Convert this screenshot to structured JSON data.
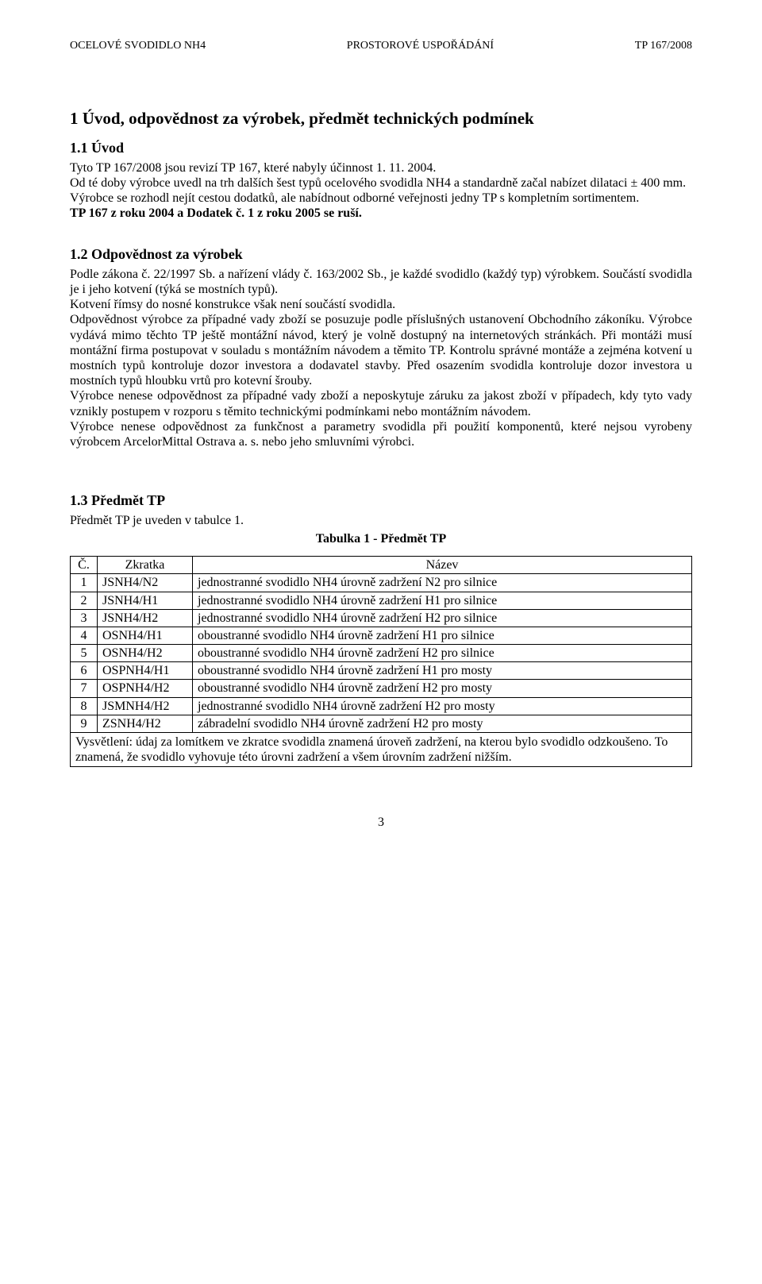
{
  "header": {
    "left": "OCELOVÉ SVODIDLO NH4",
    "center": "PROSTOROVÉ USPOŘÁDÁNÍ",
    "right": "TP 167/2008"
  },
  "section1": {
    "title": "1  Úvod, odpovědnost za výrobek, předmět technických podmínek",
    "s11": {
      "title": "1.1  Úvod",
      "p1": "Tyto TP 167/2008 jsou revizí TP 167, které nabyly účinnost 1. 11. 2004.",
      "p2": "Od té doby výrobce uvedl na trh dalších šest typů ocelového svodidla NH4 a standardně začal nabízet dilataci ± 400 mm.",
      "p3": "Výrobce se rozhodl nejít cestou dodatků, ale nabídnout odborné veřejnosti jedny TP s kompletním sortimentem.",
      "p4": "TP 167 z roku 2004 a Dodatek č. 1 z roku 2005 se ruší."
    },
    "s12": {
      "title": "1.2  Odpovědnost za výrobek",
      "p1": "Podle zákona č. 22/1997 Sb. a nařízení vlády č. 163/2002 Sb., je každé svodidlo (každý typ) výrobkem. Součástí svodidla je i jeho kotvení (týká se mostních typů).",
      "p2": "Kotvení římsy do nosné konstrukce však není součástí svodidla.",
      "p3": "Odpovědnost výrobce za případné vady zboží se posuzuje podle příslušných ustanovení Obchodního zákoníku. Výrobce vydává mimo těchto TP ještě montážní návod, který je volně dostupný na internetových stránkách. Při montáži musí montážní firma postupovat v souladu s montážním návodem a těmito TP. Kontrolu správné montáže a zejména kotvení u mostních typů kontroluje dozor investora a dodavatel stavby. Před osazením svodidla kontroluje dozor investora u mostních typů hloubku vrtů pro kotevní šrouby.",
      "p4": "Výrobce nenese odpovědnost za případné vady zboží a neposkytuje záruku za jakost zboží v případech, kdy tyto vady vznikly postupem v rozporu s těmito technickými podmínkami nebo montážním návodem.",
      "p5": "Výrobce nenese odpovědnost za funkčnost a parametry svodidla při použití komponentů, které nejsou vyrobeny výrobcem ArcelorMittal Ostrava a. s. nebo jeho smluvními výrobci."
    },
    "s13": {
      "title": "1.3  Předmět TP",
      "intro": "Předmět TP je uveden v tabulce 1.",
      "table_caption": "Tabulka 1 - Předmět TP",
      "table": {
        "head": {
          "num": "Č.",
          "abbr": "Zkratka",
          "name": "Název"
        },
        "rows": [
          {
            "num": "1",
            "abbr": "JSNH4/N2",
            "name": "jednostranné svodidlo NH4 úrovně zadržení N2 pro silnice"
          },
          {
            "num": "2",
            "abbr": "JSNH4/H1",
            "name": "jednostranné svodidlo NH4 úrovně zadržení H1 pro silnice"
          },
          {
            "num": "3",
            "abbr": "JSNH4/H2",
            "name": "jednostranné svodidlo NH4 úrovně zadržení H2 pro silnice"
          },
          {
            "num": "4",
            "abbr": "OSNH4/H1",
            "name": "oboustranné svodidlo NH4 úrovně zadržení H1 pro silnice"
          },
          {
            "num": "5",
            "abbr": "OSNH4/H2",
            "name": "oboustranné svodidlo NH4 úrovně zadržení H2 pro silnice"
          },
          {
            "num": "6",
            "abbr": "OSPNH4/H1",
            "name": "oboustranné svodidlo NH4 úrovně zadržení H1 pro mosty"
          },
          {
            "num": "7",
            "abbr": "OSPNH4/H2",
            "name": "oboustranné svodidlo NH4 úrovně zadržení H2 pro mosty"
          },
          {
            "num": "8",
            "abbr": "JSMNH4/H2",
            "name": "jednostranné svodidlo NH4 úrovně zadržení H2 pro mosty"
          },
          {
            "num": "9",
            "abbr": "ZSNH4/H2",
            "name": "zábradelní svodidlo NH4 úrovně zadržení H2 pro mosty"
          }
        ],
        "footer": "Vysvětlení: údaj za lomítkem ve zkratce svodidla znamená úroveň zadržení, na kterou bylo svodidlo odzkoušeno. To znamená, že svodidlo vyhovuje této úrovni zadržení a všem úrovním zadržení nižším."
      }
    }
  },
  "page_number": "3"
}
